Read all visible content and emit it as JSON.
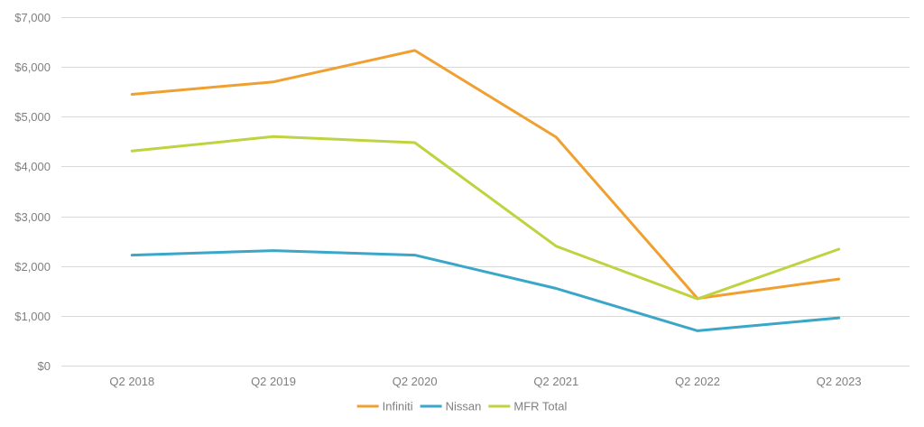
{
  "chart_data": {
    "type": "line",
    "title": "",
    "xlabel": "",
    "ylabel": "",
    "categories": [
      "Q2 2018",
      "Q2 2019",
      "Q2 2020",
      "Q2 2021",
      "Q2 2022",
      "Q2 2023"
    ],
    "ylim": [
      0,
      7000
    ],
    "yticks": [
      0,
      1000,
      2000,
      3000,
      4000,
      5000,
      6000,
      7000
    ],
    "ytick_labels": [
      "$0",
      "$1,000",
      "$2,000",
      "$3,000",
      "$4,000",
      "$5,000",
      "$6,000",
      "$7,000"
    ],
    "grid": true,
    "legend_position": "bottom",
    "series": [
      {
        "name": "Infiniti",
        "color": "#F0A030",
        "values": [
          5450,
          5700,
          6330,
          4590,
          1350,
          1740
        ]
      },
      {
        "name": "Nissan",
        "color": "#3AA6C8",
        "values": [
          2220,
          2310,
          2220,
          1550,
          700,
          960
        ]
      },
      {
        "name": "MFR Total",
        "color": "#BFD340",
        "values": [
          4310,
          4600,
          4480,
          2400,
          1340,
          2340
        ]
      }
    ]
  }
}
